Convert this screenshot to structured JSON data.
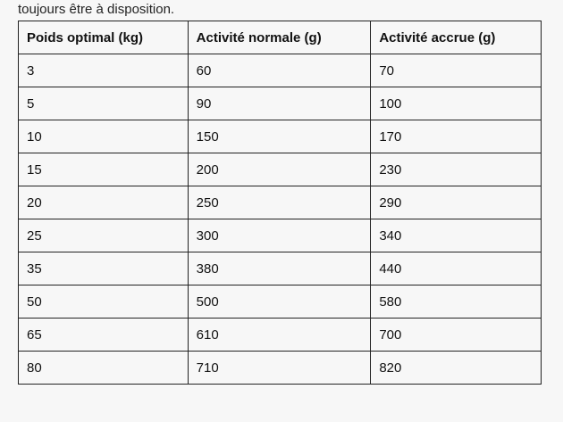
{
  "intro_text": "toujours être à disposition.",
  "table": {
    "headers": [
      "Poids optimal (kg)",
      "Activité normale (g)",
      "Activité accrue (g)"
    ],
    "rows": [
      [
        "3",
        "60",
        "70"
      ],
      [
        "5",
        "90",
        "100"
      ],
      [
        "10",
        "150",
        "170"
      ],
      [
        "15",
        "200",
        "230"
      ],
      [
        "20",
        "250",
        "290"
      ],
      [
        "25",
        "300",
        "340"
      ],
      [
        "35",
        "380",
        "440"
      ],
      [
        "50",
        "500",
        "580"
      ],
      [
        "65",
        "610",
        "700"
      ],
      [
        "80",
        "710",
        "820"
      ]
    ]
  }
}
